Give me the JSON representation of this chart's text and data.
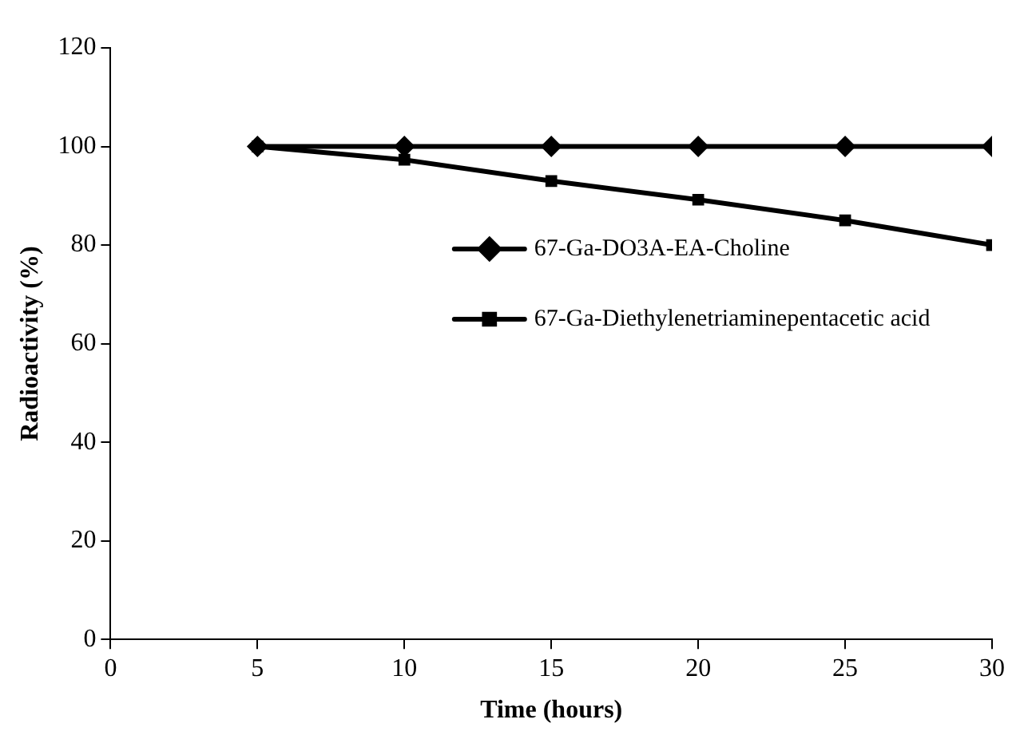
{
  "chart_data": {
    "type": "line",
    "xlabel": "Time (hours)",
    "ylabel": "Radioactivity (%)",
    "x": [
      5,
      10,
      15,
      20,
      25,
      30
    ],
    "series": [
      {
        "name": "67-Ga-DO3A-EA-Choline",
        "color": "#000000",
        "marker": "diamond",
        "values": [
          100,
          100,
          100,
          100,
          100,
          100
        ]
      },
      {
        "name": "67-Ga-Diethylenetriaminepentacetic acid",
        "color": "#000000",
        "marker": "square",
        "values": [
          100,
          97.3,
          93,
          89.2,
          85,
          80
        ]
      }
    ],
    "xlim": [
      0,
      30
    ],
    "xticks": [
      0,
      5,
      10,
      15,
      20,
      25,
      30
    ],
    "ylim": [
      0,
      120
    ],
    "yticks": [
      0,
      20,
      40,
      60,
      80,
      100,
      120
    ],
    "grid": false,
    "legend": "right",
    "line_style": "solid"
  }
}
